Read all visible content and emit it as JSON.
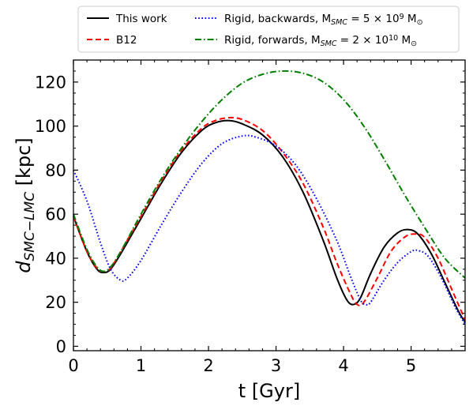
{
  "chart_data": {
    "type": "line",
    "title": "",
    "xlabel": "t [Gyr]",
    "ylabel": "d_{SMC−LMC} [kpc]",
    "xlim": [
      0,
      5.8
    ],
    "ylim": [
      -2,
      130
    ],
    "x_ticks": [
      0,
      1,
      2,
      3,
      4,
      5
    ],
    "y_ticks": [
      0,
      20,
      40,
      60,
      80,
      100,
      120
    ],
    "grid": false,
    "legend_position": "top, above plot, 2 columns",
    "series": [
      {
        "name": "This work",
        "color": "#000000",
        "dash": "solid",
        "x": [
          0,
          0.2,
          0.35,
          0.45,
          0.55,
          0.7,
          1.0,
          1.3,
          1.6,
          1.9,
          2.1,
          2.3,
          2.5,
          2.8,
          3.1,
          3.4,
          3.7,
          3.9,
          4.05,
          4.15,
          4.25,
          4.4,
          4.6,
          4.8,
          4.95,
          5.1,
          5.3,
          5.5,
          5.7,
          5.8
        ],
        "y": [
          59,
          43,
          35,
          33.5,
          35,
          42,
          58,
          74,
          88,
          98,
          101.5,
          102.5,
          101,
          96,
          86,
          70,
          48,
          31,
          21,
          19,
          22,
          33,
          45,
          51.5,
          53,
          51,
          42,
          29,
          16,
          11
        ]
      },
      {
        "name": "B12",
        "color": "#ff0000",
        "dash": "dashed",
        "x": [
          0,
          0.2,
          0.35,
          0.45,
          0.55,
          0.7,
          1.0,
          1.3,
          1.6,
          1.9,
          2.1,
          2.3,
          2.5,
          2.8,
          3.1,
          3.4,
          3.7,
          3.9,
          4.1,
          4.2,
          4.3,
          4.5,
          4.7,
          4.9,
          5.05,
          5.2,
          5.4,
          5.6,
          5.8
        ],
        "y": [
          59,
          43,
          35.5,
          34,
          35.5,
          43,
          59,
          75,
          89,
          99,
          102.5,
          103.8,
          103,
          98,
          88,
          74,
          54,
          38,
          24,
          19,
          20,
          31,
          43,
          49.5,
          51,
          49.5,
          40,
          26,
          12
        ]
      },
      {
        "name": "Rigid, backwards, M_{SMC} = 5 × 10^9 M_⊙",
        "color": "#0000ff",
        "dash": "dotted",
        "x": [
          0,
          0.2,
          0.4,
          0.55,
          0.7,
          0.8,
          1.0,
          1.3,
          1.6,
          1.9,
          2.2,
          2.5,
          2.7,
          3.0,
          3.3,
          3.6,
          3.9,
          4.1,
          4.25,
          4.33,
          4.4,
          4.6,
          4.8,
          5.0,
          5.1,
          5.25,
          5.45,
          5.65,
          5.8
        ],
        "y": [
          80,
          66,
          47,
          35,
          30,
          31,
          39,
          55,
          70,
          83,
          92,
          95.5,
          95,
          91,
          82,
          67,
          48,
          32,
          21,
          19,
          20,
          30,
          38,
          43,
          43.5,
          41,
          31,
          18,
          10
        ]
      },
      {
        "name": "Rigid, forwards, M_{SMC} = 2 × 10^{10} M_⊙",
        "color": "#008000",
        "dash": "dashdot",
        "x": [
          0,
          0.2,
          0.35,
          0.45,
          0.55,
          0.7,
          1.0,
          1.3,
          1.6,
          1.9,
          2.2,
          2.5,
          2.8,
          3.1,
          3.4,
          3.7,
          4.0,
          4.3,
          4.6,
          4.9,
          5.2,
          5.5,
          5.8
        ],
        "y": [
          60,
          44,
          36,
          34,
          36,
          43,
          60,
          76,
          90,
          102,
          112,
          119.5,
          123.5,
          125,
          124,
          120,
          112,
          100,
          85,
          69,
          54,
          40,
          31
        ]
      }
    ]
  }
}
